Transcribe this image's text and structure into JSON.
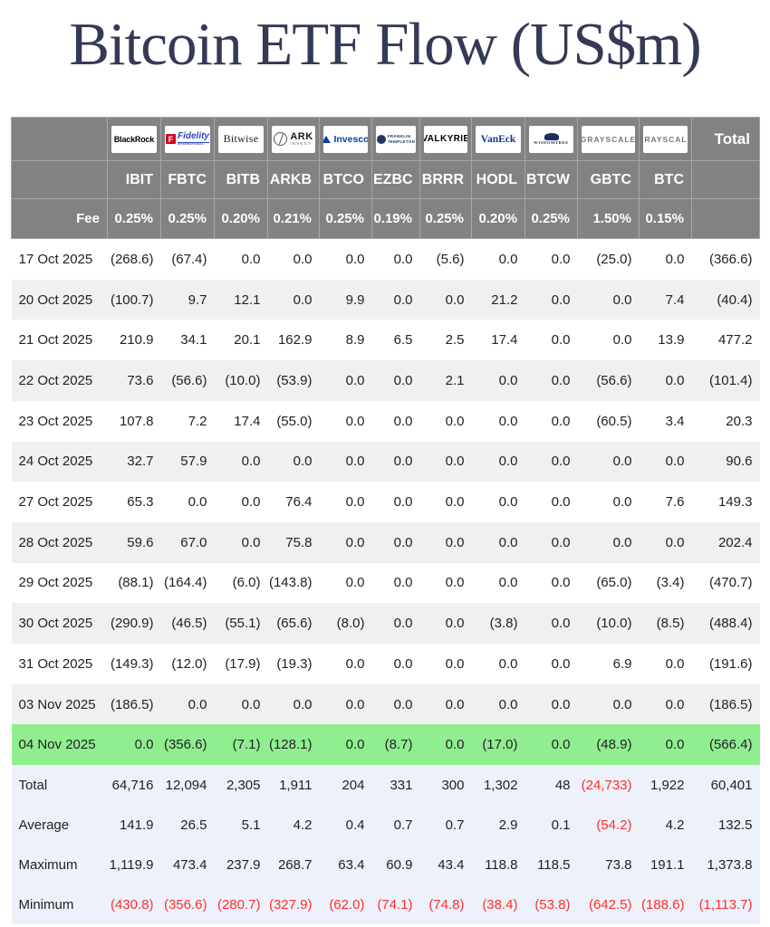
{
  "title": "Bitcoin ETF Flow (US$m)",
  "colors": {
    "header_bg": "#828282",
    "stripe_bg": "#f0f0f0",
    "highlight_green": "#90ee90",
    "summary_bg": "#edf1f9",
    "negative_red": "#ff2f2f",
    "title_navy": "#343a56"
  },
  "header": {
    "fee_label": "Fee",
    "total_label": "Total",
    "columns": [
      {
        "key": "blackrock",
        "logo": {
          "text": "BlackRock"
        },
        "ticker": "IBIT",
        "fee": "0.25%"
      },
      {
        "key": "fidelity",
        "logo": {
          "icon": "F",
          "text": "Fidelity",
          "subtext": "INTERNATIONAL"
        },
        "ticker": "FBTC",
        "fee": "0.25%"
      },
      {
        "key": "bitwise",
        "logo": {
          "text": "Bitwise"
        },
        "ticker": "BITB",
        "fee": "0.20%"
      },
      {
        "key": "ark",
        "logo": {
          "text": "ARK",
          "subtext": "INVEST"
        },
        "ticker": "ARKB",
        "fee": "0.21%"
      },
      {
        "key": "invesco",
        "logo": {
          "text": "Invesco"
        },
        "ticker": "BTCO",
        "fee": "0.25%"
      },
      {
        "key": "franklin",
        "logo": {
          "line1": "FRANKLIN",
          "line2": "TEMPLETON"
        },
        "ticker": "EZBC",
        "fee": "0.19%"
      },
      {
        "key": "valkyrie",
        "logo": {
          "text": "VALKYRIE"
        },
        "ticker": "BRRR",
        "fee": "0.25%"
      },
      {
        "key": "vaneck",
        "logo": {
          "text": "VanEck"
        },
        "ticker": "HODL",
        "fee": "0.20%"
      },
      {
        "key": "wisdomtree",
        "logo": {
          "text": "WISDOMTREE"
        },
        "ticker": "BTCW",
        "fee": "0.25%"
      },
      {
        "key": "grayscale",
        "logo": {
          "text": "GRAYSCALE"
        },
        "ticker": "GBTC",
        "fee": "1.50%"
      },
      {
        "key": "grayscale2",
        "logo": {
          "text": "GRAYSCALE"
        },
        "ticker": "BTC",
        "fee": "0.15%"
      }
    ]
  },
  "rows": [
    {
      "date": "17 Oct 2025",
      "values": [
        "(268.6)",
        "(67.4)",
        "0.0",
        "0.0",
        "0.0",
        "0.0",
        "(5.6)",
        "0.0",
        "0.0",
        "(25.0)",
        "0.0",
        "(366.6)"
      ]
    },
    {
      "date": "20 Oct 2025",
      "values": [
        "(100.7)",
        "9.7",
        "12.1",
        "0.0",
        "9.9",
        "0.0",
        "0.0",
        "21.2",
        "0.0",
        "0.0",
        "7.4",
        "(40.4)"
      ]
    },
    {
      "date": "21 Oct 2025",
      "values": [
        "210.9",
        "34.1",
        "20.1",
        "162.9",
        "8.9",
        "6.5",
        "2.5",
        "17.4",
        "0.0",
        "0.0",
        "13.9",
        "477.2"
      ]
    },
    {
      "date": "22 Oct 2025",
      "values": [
        "73.6",
        "(56.6)",
        "(10.0)",
        "(53.9)",
        "0.0",
        "0.0",
        "2.1",
        "0.0",
        "0.0",
        "(56.6)",
        "0.0",
        "(101.4)"
      ]
    },
    {
      "date": "23 Oct 2025",
      "values": [
        "107.8",
        "7.2",
        "17.4",
        "(55.0)",
        "0.0",
        "0.0",
        "0.0",
        "0.0",
        "0.0",
        "(60.5)",
        "3.4",
        "20.3"
      ]
    },
    {
      "date": "24 Oct 2025",
      "values": [
        "32.7",
        "57.9",
        "0.0",
        "0.0",
        "0.0",
        "0.0",
        "0.0",
        "0.0",
        "0.0",
        "0.0",
        "0.0",
        "90.6"
      ]
    },
    {
      "date": "27 Oct 2025",
      "values": [
        "65.3",
        "0.0",
        "0.0",
        "76.4",
        "0.0",
        "0.0",
        "0.0",
        "0.0",
        "0.0",
        "0.0",
        "7.6",
        "149.3"
      ]
    },
    {
      "date": "28 Oct 2025",
      "values": [
        "59.6",
        "67.0",
        "0.0",
        "75.8",
        "0.0",
        "0.0",
        "0.0",
        "0.0",
        "0.0",
        "0.0",
        "0.0",
        "202.4"
      ]
    },
    {
      "date": "29 Oct 2025",
      "values": [
        "(88.1)",
        "(164.4)",
        "(6.0)",
        "(143.8)",
        "0.0",
        "0.0",
        "0.0",
        "0.0",
        "0.0",
        "(65.0)",
        "(3.4)",
        "(470.7)"
      ]
    },
    {
      "date": "30 Oct 2025",
      "values": [
        "(290.9)",
        "(46.5)",
        "(55.1)",
        "(65.6)",
        "(8.0)",
        "0.0",
        "0.0",
        "(3.8)",
        "0.0",
        "(10.0)",
        "(8.5)",
        "(488.4)"
      ]
    },
    {
      "date": "31 Oct 2025",
      "values": [
        "(149.3)",
        "(12.0)",
        "(17.9)",
        "(19.3)",
        "0.0",
        "0.0",
        "0.0",
        "0.0",
        "0.0",
        "6.9",
        "0.0",
        "(191.6)"
      ]
    },
    {
      "date": "03 Nov 2025",
      "values": [
        "(186.5)",
        "0.0",
        "0.0",
        "0.0",
        "0.0",
        "0.0",
        "0.0",
        "0.0",
        "0.0",
        "0.0",
        "0.0",
        "(186.5)"
      ]
    },
    {
      "date": "04 Nov 2025",
      "highlighted": true,
      "values": [
        "0.0",
        "(356.6)",
        "(7.1)",
        "(128.1)",
        "0.0",
        "(8.7)",
        "0.0",
        "(17.0)",
        "0.0",
        "(48.9)",
        "0.0",
        "(566.4)"
      ]
    }
  ],
  "summary": [
    {
      "label": "Total",
      "values": [
        "64,716",
        "12,094",
        "2,305",
        "1,911",
        "204",
        "331",
        "300",
        "1,302",
        "48",
        "(24,733)",
        "1,922",
        "60,401"
      ]
    },
    {
      "label": "Average",
      "values": [
        "141.9",
        "26.5",
        "5.1",
        "4.2",
        "0.4",
        "0.7",
        "0.7",
        "2.9",
        "0.1",
        "(54.2)",
        "4.2",
        "132.5"
      ]
    },
    {
      "label": "Maximum",
      "values": [
        "1,119.9",
        "473.4",
        "237.9",
        "268.7",
        "63.4",
        "60.9",
        "43.4",
        "118.8",
        "118.5",
        "73.8",
        "191.1",
        "1,373.8"
      ]
    },
    {
      "label": "Minimum",
      "values": [
        "(430.8)",
        "(356.6)",
        "(280.7)",
        "(327.9)",
        "(62.0)",
        "(74.1)",
        "(74.8)",
        "(38.4)",
        "(53.8)",
        "(642.5)",
        "(188.6)",
        "(1,113.7)"
      ]
    }
  ]
}
